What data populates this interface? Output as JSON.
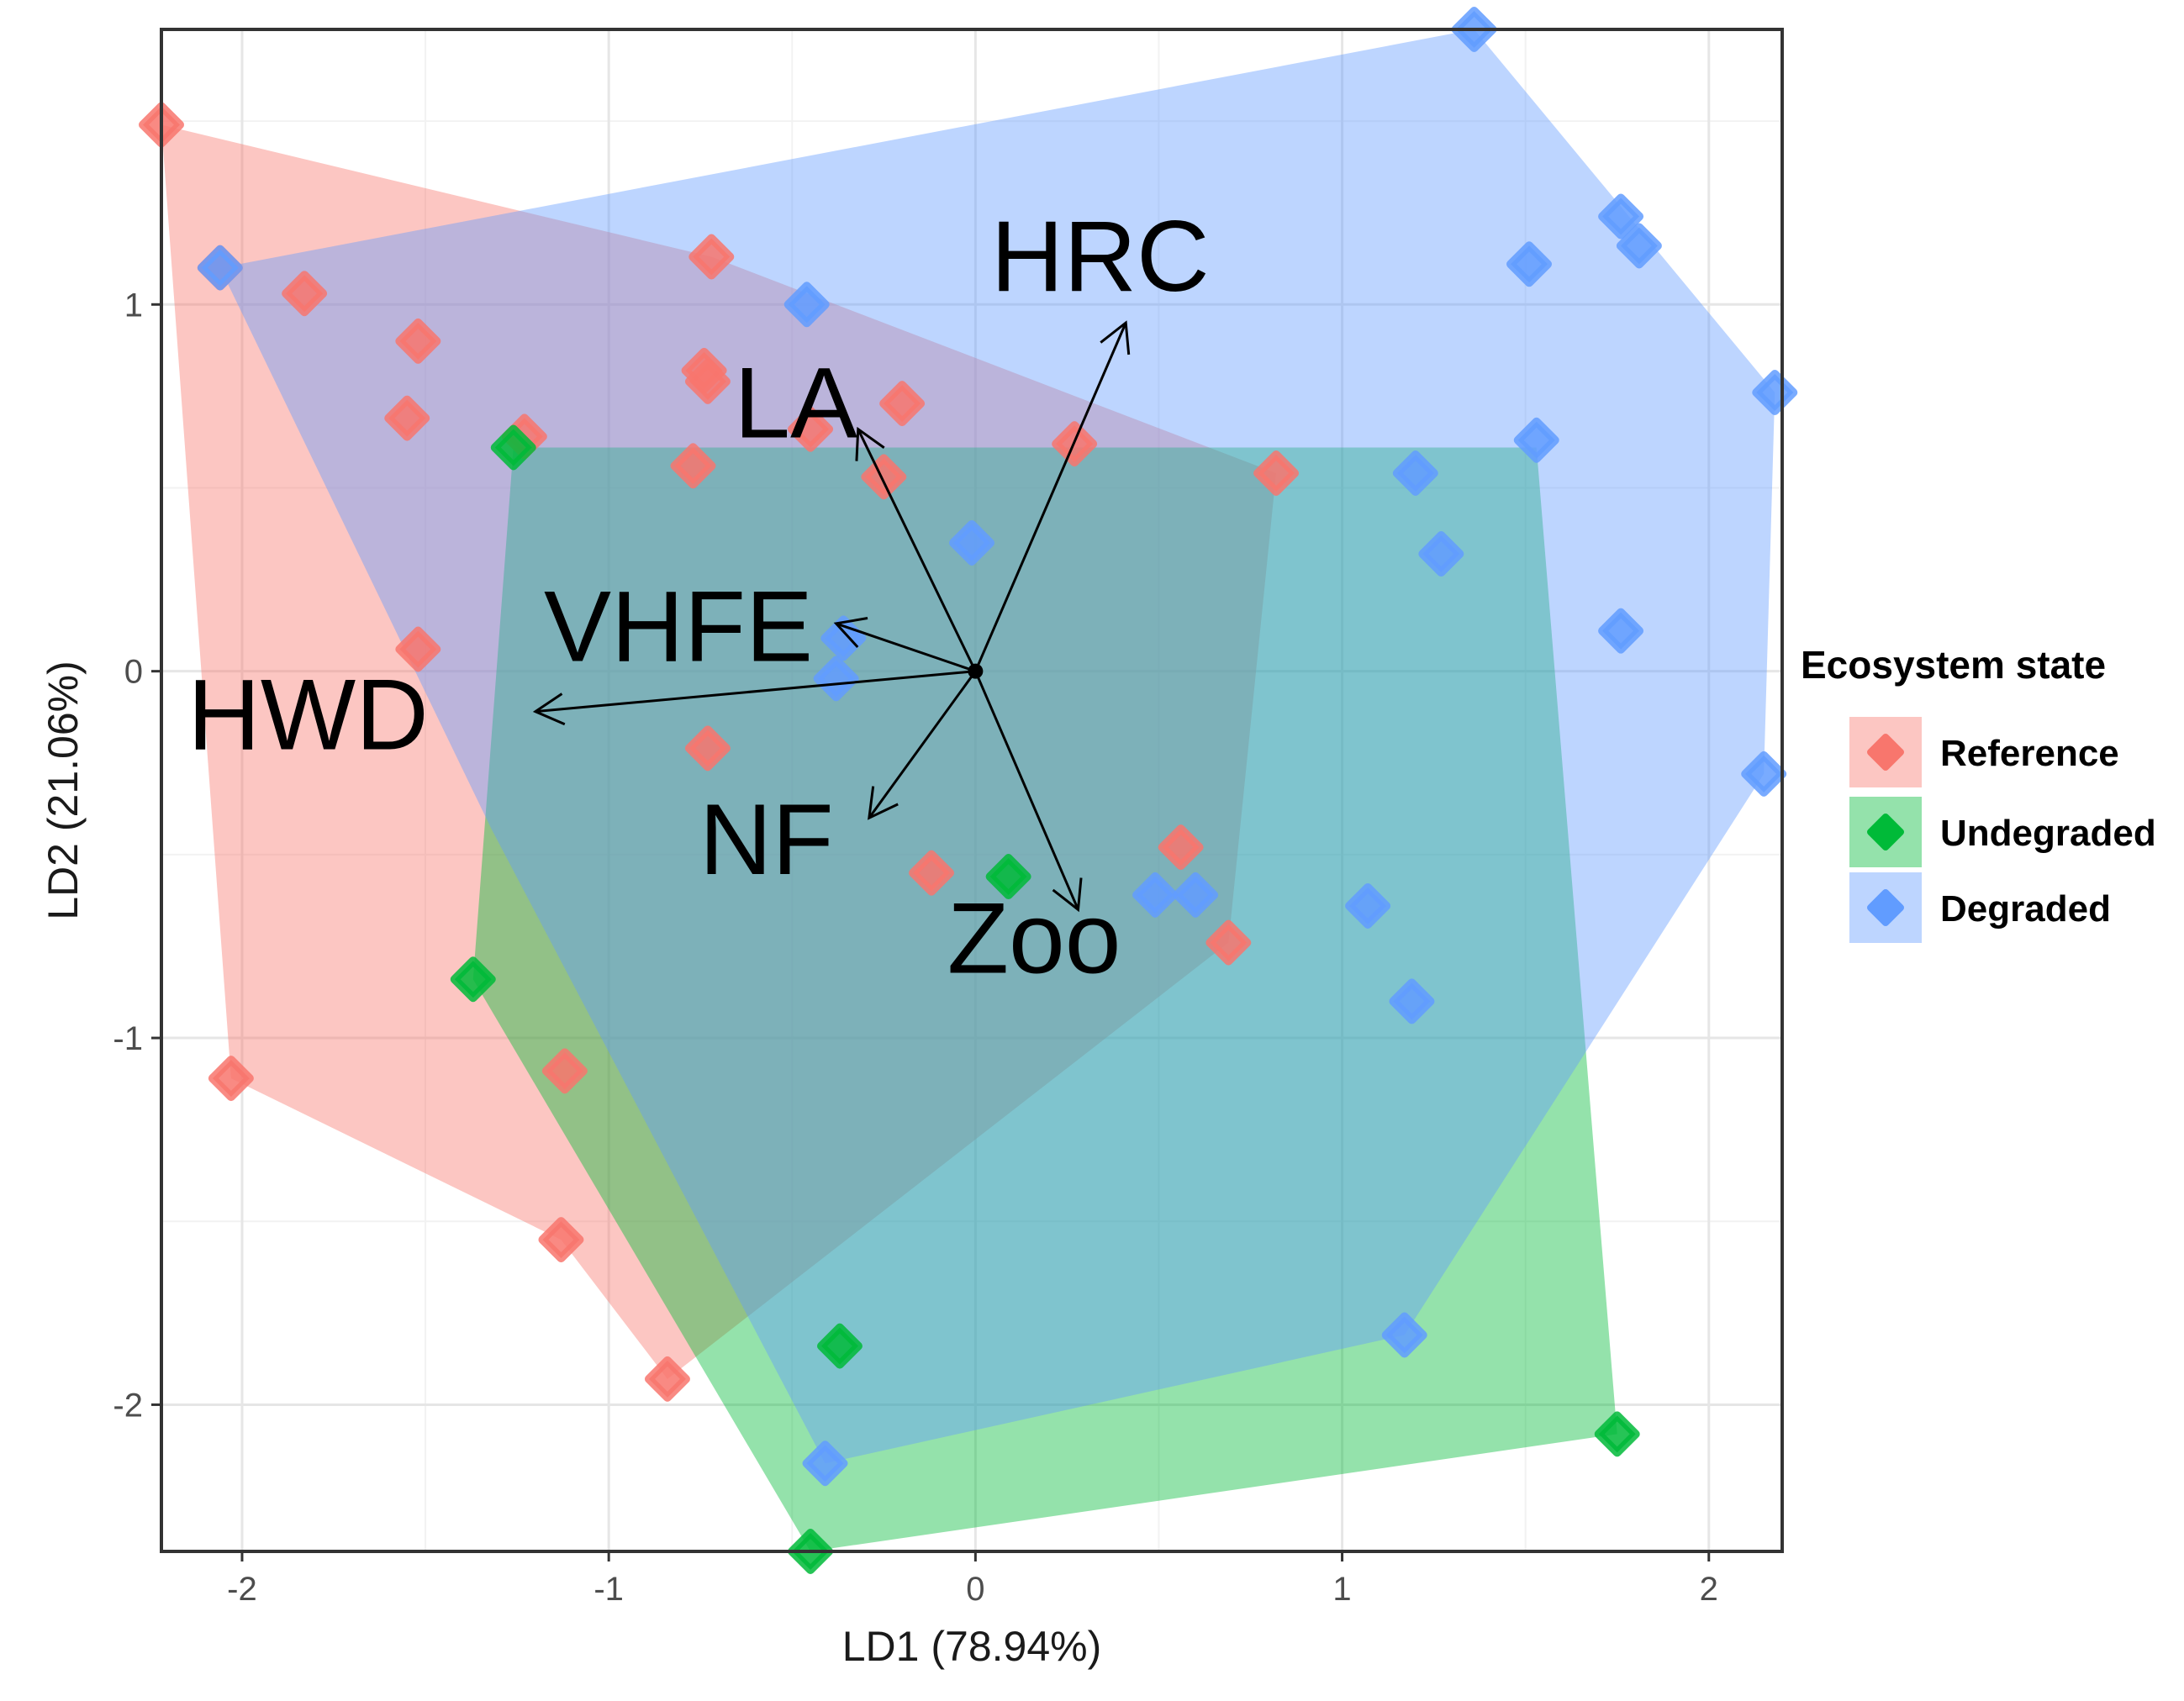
{
  "chart_data": {
    "type": "scatter",
    "title": "",
    "xlabel": "LD1 (78.94%)",
    "ylabel": "LD2 (21.06%)",
    "xlim": [
      -2.22,
      2.2
    ],
    "ylim": [
      -2.4,
      1.75
    ],
    "xticks": [
      -2,
      -1,
      0,
      1,
      2
    ],
    "yticks": [
      -2,
      -1,
      0,
      1
    ],
    "xtick_labels": [
      "-2",
      "-1",
      "0",
      "1",
      "2"
    ],
    "ytick_labels": [
      "-2",
      "-1",
      "0",
      "1"
    ],
    "grid": true,
    "legend": {
      "title": "Ecosystem state",
      "position": "right",
      "entries": [
        "Reference",
        "Undegraded",
        "Degraded"
      ]
    },
    "series": [
      {
        "name": "Reference",
        "color": "#F8766D",
        "points": [
          [
            -2.22,
            1.49
          ],
          [
            -2.06,
            1.1
          ],
          [
            -1.83,
            1.03
          ],
          [
            -1.52,
            0.9
          ],
          [
            -1.55,
            0.69
          ],
          [
            -1.23,
            0.64
          ],
          [
            -0.72,
            1.13
          ],
          [
            -0.74,
            0.82
          ],
          [
            -0.73,
            0.79
          ],
          [
            -0.45,
            0.66
          ],
          [
            -0.2,
            0.73
          ],
          [
            -0.25,
            0.53
          ],
          [
            0.27,
            0.62
          ],
          [
            -0.77,
            0.56
          ],
          [
            0.82,
            0.54
          ],
          [
            -1.52,
            0.06
          ],
          [
            -0.73,
            -0.21
          ],
          [
            -0.12,
            -0.55
          ],
          [
            0.56,
            -0.48
          ],
          [
            0.69,
            -0.74
          ],
          [
            -1.12,
            -1.09
          ],
          [
            -2.03,
            -1.11
          ],
          [
            -1.13,
            -1.55
          ],
          [
            -0.84,
            -1.93
          ]
        ],
        "hull": [
          [
            -2.22,
            1.49
          ],
          [
            -0.72,
            1.13
          ],
          [
            0.82,
            0.54
          ],
          [
            0.69,
            -0.74
          ],
          [
            -0.84,
            -1.93
          ],
          [
            -1.13,
            -1.55
          ],
          [
            -2.03,
            -1.11
          ]
        ]
      },
      {
        "name": "Undegraded",
        "color": "#00BA38",
        "points": [
          [
            -1.26,
            0.61
          ],
          [
            0.09,
            -0.56
          ],
          [
            -1.37,
            -0.84
          ],
          [
            -0.37,
            -1.84
          ],
          [
            -0.45,
            -2.4
          ],
          [
            1.75,
            -2.08
          ]
        ],
        "hull": [
          [
            -1.26,
            0.61
          ],
          [
            1.53,
            0.61
          ],
          [
            1.75,
            -2.08
          ],
          [
            -0.45,
            -2.4
          ],
          [
            -1.37,
            -0.84
          ]
        ]
      },
      {
        "name": "Degraded",
        "color": "#619CFF",
        "points": [
          [
            1.36,
            1.75
          ],
          [
            -2.06,
            1.1
          ],
          [
            -0.46,
            1.0
          ],
          [
            1.76,
            1.24
          ],
          [
            1.81,
            1.16
          ],
          [
            1.51,
            1.11
          ],
          [
            2.18,
            0.76
          ],
          [
            1.53,
            0.63
          ],
          [
            1.2,
            0.54
          ],
          [
            -0.01,
            0.35
          ],
          [
            1.27,
            0.32
          ],
          [
            1.76,
            0.11
          ],
          [
            -0.36,
            0.09
          ],
          [
            -0.38,
            -0.02
          ],
          [
            2.15,
            -0.28
          ],
          [
            0.49,
            -0.61
          ],
          [
            0.6,
            -0.61
          ],
          [
            1.07,
            -0.64
          ],
          [
            1.19,
            -0.9
          ],
          [
            1.17,
            -1.81
          ],
          [
            -0.41,
            -2.16
          ]
        ],
        "hull": [
          [
            -2.06,
            1.1
          ],
          [
            1.36,
            1.75
          ],
          [
            2.18,
            0.76
          ],
          [
            2.15,
            -0.28
          ],
          [
            1.17,
            -1.81
          ],
          [
            -0.41,
            -2.16
          ],
          [
            -1.32,
            -0.43
          ]
        ]
      }
    ],
    "vectors": [
      {
        "label": "HRC",
        "end": [
          0.41,
          0.95
        ]
      },
      {
        "label": "LA",
        "end": [
          -0.32,
          0.66
        ]
      },
      {
        "label": "VHFE",
        "end": [
          -0.38,
          0.13
        ]
      },
      {
        "label": "HWD",
        "end": [
          -1.2,
          -0.11
        ]
      },
      {
        "label": "NF",
        "end": [
          -0.29,
          -0.4
        ]
      },
      {
        "label": "Zoo",
        "end": [
          0.28,
          -0.65
        ]
      }
    ]
  }
}
